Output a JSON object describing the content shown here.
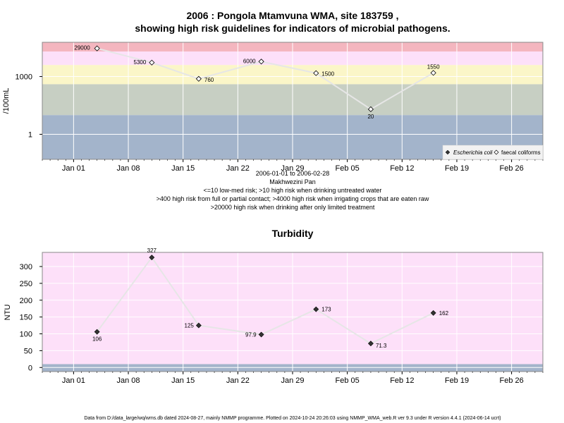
{
  "title_line1": "2006 : Pongola Mtamvuna WMA, site 183759 ,",
  "title_line2": "showing high risk guidelines for indicators of microbial pathogens.",
  "caption": {
    "date_range": "2006-01-01 to 2006-02-28",
    "site_name": "Makhwezini Pan",
    "line1": "<=10 low-med risk; >10 high risk when drinking untreated water",
    "line2": ">400 high risk from full or partial contact; >4000 high risk when irrigating crops that are eaten raw",
    "line3": ">20000 high risk when drinking after only limited treatment"
  },
  "footer": "Data from D:/data_large/wq/wms.db dated 2024-08-27, mainly NMMP programme. Plotted on 2024-10-24 20:26:03 using NMMP_WMA_web.R ver 9.3 under R version 4.4.1 (2024-06-14 ucrt)",
  "colors": {
    "band_red": "#f4b6bf",
    "band_pink": "#fde0f9",
    "band_yellow": "#fbf6c8",
    "band_green": "#c7cfc3",
    "band_blue": "#a3b4cb",
    "grid": "#ffffff",
    "line": "#e6e6e6"
  },
  "chart_data": [
    {
      "type": "line",
      "title": "",
      "ylabel": "/100mL",
      "yscale": "log",
      "ylim": [
        0.05,
        60000
      ],
      "yticks": [
        1,
        1000
      ],
      "ytick_labels": [
        "1",
        "1000"
      ],
      "xlim": [
        "2005-12-28",
        "2006-03-02"
      ],
      "xticks": [
        "2006-01-01",
        "2006-01-08",
        "2006-01-15",
        "2006-01-22",
        "2006-01-29",
        "2006-02-05",
        "2006-02-12",
        "2006-02-19",
        "2006-02-26"
      ],
      "xtick_labels": [
        "Jan 01",
        "Jan 08",
        "Jan 15",
        "Jan 22",
        "Jan 29",
        "Feb 05",
        "Feb 12",
        "Feb 19",
        "Feb 26"
      ],
      "grid": true,
      "bands": [
        {
          "from": 0.05,
          "to": 10,
          "color": "band_blue"
        },
        {
          "from": 10,
          "to": 400,
          "color": "band_green"
        },
        {
          "from": 400,
          "to": 4000,
          "color": "band_yellow"
        },
        {
          "from": 4000,
          "to": 20000,
          "color": "band_pink"
        },
        {
          "from": 20000,
          "to": 60000,
          "color": "band_red"
        }
      ],
      "series": [
        {
          "name": "faecal coliforms",
          "marker": "open-diamond",
          "x": [
            "2006-01-04",
            "2006-01-11",
            "2006-01-17",
            "2006-01-25",
            "2006-02-01",
            "2006-02-08",
            "2006-02-16"
          ],
          "y": [
            29000,
            5300,
            760,
            6000,
            1500,
            20,
            1550
          ],
          "labels": [
            "29000",
            "5300",
            "760",
            "6000",
            "1500",
            "20",
            "1550"
          ]
        }
      ],
      "legend": {
        "position": "bottom-right",
        "entries": [
          "Escherichia coli",
          "faecal coliforms"
        ]
      }
    },
    {
      "type": "line",
      "title": "Turbidity",
      "ylabel": "NTU",
      "ylim": [
        -12,
        342
      ],
      "yticks": [
        0,
        50,
        100,
        150,
        200,
        250,
        300
      ],
      "ytick_labels": [
        "0",
        "50",
        "100",
        "150",
        "200",
        "250",
        "300"
      ],
      "xlim": [
        "2005-12-28",
        "2006-03-02"
      ],
      "xticks": [
        "2006-01-01",
        "2006-01-08",
        "2006-01-15",
        "2006-01-22",
        "2006-01-29",
        "2006-02-05",
        "2006-02-12",
        "2006-02-19",
        "2006-02-26"
      ],
      "xtick_labels": [
        "Jan 01",
        "Jan 08",
        "Jan 15",
        "Jan 22",
        "Jan 29",
        "Feb 05",
        "Feb 12",
        "Feb 19",
        "Feb 26"
      ],
      "grid": true,
      "bands": [
        {
          "from": -12,
          "to": 10,
          "color": "band_blue"
        },
        {
          "from": 10,
          "to": 342,
          "color": "band_pink"
        }
      ],
      "series": [
        {
          "name": "",
          "marker": "filled-diamond",
          "x": [
            "2006-01-04",
            "2006-01-11",
            "2006-01-17",
            "2006-01-25",
            "2006-02-01",
            "2006-02-08",
            "2006-02-16"
          ],
          "y": [
            106,
            327,
            125,
            97.9,
            173,
            71.3,
            162
          ],
          "labels": [
            "106",
            "327",
            "125",
            "97.9",
            "173",
            "71.3",
            "162"
          ]
        }
      ]
    }
  ]
}
